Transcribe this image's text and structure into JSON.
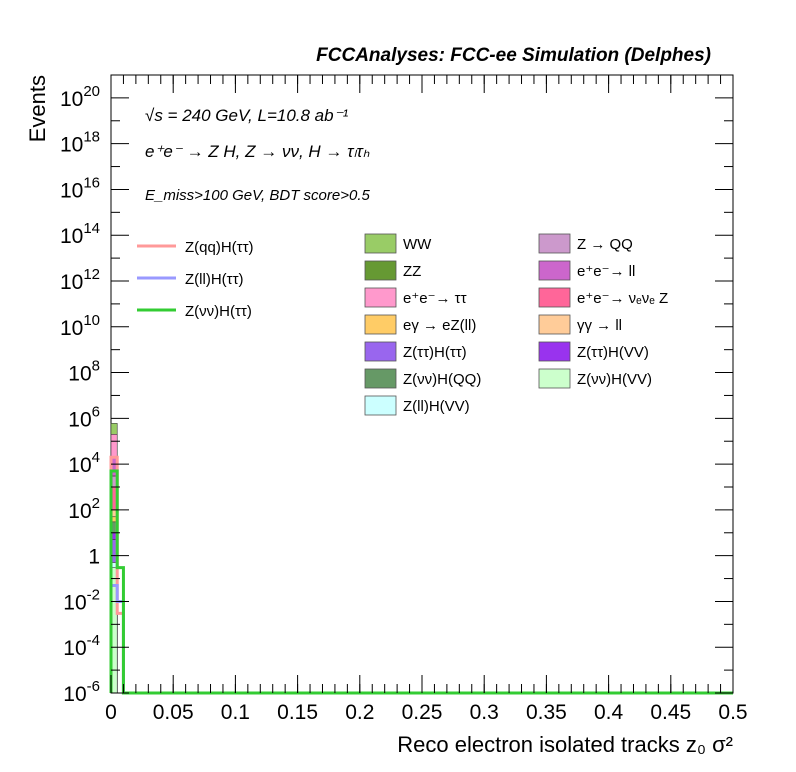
{
  "chart_data": {
    "type": "bar",
    "title": "FCCAnalyses: FCC-ee Simulation (Delphes)",
    "xlabel": "Reco electron isolated tracks z₀ σ²",
    "ylabel": "Events",
    "xlim": [
      0,
      0.5
    ],
    "ylim": [
      1e-06,
      1e+21
    ],
    "yscale": "log",
    "grid": false,
    "legend_placement": "upper-center",
    "x_ticks": [
      "0",
      "0.05",
      "0.1",
      "0.15",
      "0.2",
      "0.25",
      "0.3",
      "0.35",
      "0.4",
      "0.45",
      "0.5"
    ],
    "y_ticks": [
      {
        "base": "10",
        "exp": "20"
      },
      {
        "base": "10",
        "exp": "18"
      },
      {
        "base": "10",
        "exp": "16"
      },
      {
        "base": "10",
        "exp": "14"
      },
      {
        "base": "10",
        "exp": "12"
      },
      {
        "base": "10",
        "exp": "10"
      },
      {
        "base": "10",
        "exp": "8"
      },
      {
        "base": "10",
        "exp": "6"
      },
      {
        "base": "10",
        "exp": "4"
      },
      {
        "base": "10",
        "exp": "2"
      },
      {
        "base": "1",
        "exp": ""
      },
      {
        "base": "10",
        "exp": "-2"
      },
      {
        "base": "10",
        "exp": "-4"
      },
      {
        "base": "10",
        "exp": "-6"
      }
    ],
    "annotations": {
      "energy": "√s = 240 GeV, L=10.8 ab⁻¹",
      "process": "e⁺e⁻ → Z H, Z → νν, H → τₗτₕ",
      "selection": "E_miss>100 GeV, BDT score>0.5"
    },
    "bins": [
      0.0,
      0.005,
      0.01
    ],
    "stacked_background": [
      {
        "name": "WW",
        "color": "#99cc66",
        "values": [
          600000,
          0
        ]
      },
      {
        "name": "ZZ",
        "color": "#669933",
        "values": [
          3000,
          0
        ]
      },
      {
        "name": "e⁺e⁻→ ττ",
        "color": "#ff99cc",
        "values": [
          200000,
          0
        ]
      },
      {
        "name": "eγ → eZ(ll)",
        "color": "#ffcc66",
        "values": [
          50,
          0
        ]
      },
      {
        "name": "Z(ττ)H(ττ)",
        "color": "#9966ee",
        "values": [
          5,
          0
        ]
      },
      {
        "name": "Z(νν)H(QQ)",
        "color": "#669966",
        "values": [
          30,
          0
        ]
      },
      {
        "name": "Z(ll)H(VV)",
        "color": "#ccffff",
        "values": [
          0.5,
          0
        ]
      },
      {
        "name": "Z → QQ",
        "color": "#cc99cc",
        "values": [
          3000,
          0
        ]
      },
      {
        "name": "e⁺e⁻→ ll",
        "color": "#cc66cc",
        "values": [
          20000,
          0
        ]
      },
      {
        "name": "e⁺e⁻→ νₑνₑ Z",
        "color": "#ff6699",
        "values": [
          1000,
          0
        ]
      },
      {
        "name": "γγ → ll",
        "color": "#ffcc99",
        "values": [
          100,
          0
        ]
      },
      {
        "name": "Z(ττ)H(VV)",
        "color": "#9933ee",
        "values": [
          10,
          0
        ]
      },
      {
        "name": "Z(νν)H(VV)",
        "color": "#ccffcc",
        "values": [
          0.3,
          0
        ]
      }
    ],
    "signals": [
      {
        "name": "Z(qq)H(ττ)",
        "color": "#ff9999",
        "values": [
          20000,
          0.003
        ]
      },
      {
        "name": "Z(ll)H(ττ)",
        "color": "#9999ff",
        "values": [
          0.05,
          0.01
        ]
      },
      {
        "name": "Z(νν)H(ττ)",
        "color": "#33cc33",
        "values": [
          5000,
          0.3
        ]
      }
    ]
  }
}
